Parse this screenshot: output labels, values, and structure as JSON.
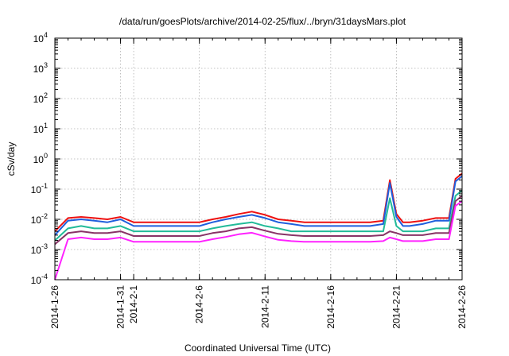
{
  "chart_data": {
    "type": "line",
    "title": "/data/run/goesPlots/archive/2014-02-25/flux/../bryn/31daysMars.plot",
    "xlabel": "Coordinated Universal Time (UTC)",
    "ylabel": "cSv/day",
    "yscale": "log",
    "ylim": [
      0.0001,
      10000
    ],
    "y_ticks": [
      {
        "value": 0.0001,
        "base": "10",
        "exp": "-4"
      },
      {
        "value": 0.001,
        "base": "10",
        "exp": "-3"
      },
      {
        "value": 0.01,
        "base": "10",
        "exp": "-2"
      },
      {
        "value": 0.1,
        "base": "10",
        "exp": "-1"
      },
      {
        "value": 1,
        "base": "10",
        "exp": "0"
      },
      {
        "value": 10,
        "base": "10",
        "exp": "1"
      },
      {
        "value": 100,
        "base": "10",
        "exp": "2"
      },
      {
        "value": 1000,
        "base": "10",
        "exp": "3"
      },
      {
        "value": 10000,
        "base": "10",
        "exp": "4"
      }
    ],
    "xlim": [
      "2014-01-26",
      "2014-02-26"
    ],
    "x_ticks": [
      {
        "date": "2014-01-26",
        "label": "2014-1-26"
      },
      {
        "date": "2014-01-31",
        "label": "2014-1-31"
      },
      {
        "date": "2014-02-01",
        "label": "2014-2-1"
      },
      {
        "date": "2014-02-06",
        "label": "2014-2-6"
      },
      {
        "date": "2014-02-11",
        "label": "2014-2-11"
      },
      {
        "date": "2014-02-16",
        "label": "2014-2-16"
      },
      {
        "date": "2014-02-21",
        "label": "2014-2-21"
      },
      {
        "date": "2014-02-26",
        "label": "2014-2-26"
      }
    ],
    "grid": true,
    "legend": "none",
    "series": [
      {
        "color": "#ee1111",
        "x": [
          "2014-01-26",
          "2014-01-27",
          "2014-01-28",
          "2014-01-29",
          "2014-01-30",
          "2014-01-31",
          "2014-02-01",
          "2014-02-02",
          "2014-02-03",
          "2014-02-04",
          "2014-02-05",
          "2014-02-06",
          "2014-02-07",
          "2014-02-08",
          "2014-02-09",
          "2014-02-10",
          "2014-02-11",
          "2014-02-12",
          "2014-02-13",
          "2014-02-14",
          "2014-02-15",
          "2014-02-16",
          "2014-02-17",
          "2014-02-18",
          "2014-02-19",
          "2014-02-20",
          "2014-02-20T12:00",
          "2014-02-21",
          "2014-02-21T12:00",
          "2014-02-22",
          "2014-02-23",
          "2014-02-24",
          "2014-02-25",
          "2014-02-25T12:00",
          "2014-02-26"
        ],
        "values": [
          0.004,
          0.011,
          0.012,
          0.011,
          0.01,
          0.012,
          0.008,
          0.008,
          0.008,
          0.008,
          0.008,
          0.008,
          0.01,
          0.012,
          0.015,
          0.018,
          0.014,
          0.01,
          0.009,
          0.008,
          0.008,
          0.008,
          0.008,
          0.008,
          0.008,
          0.009,
          0.2,
          0.015,
          0.008,
          0.008,
          0.009,
          0.011,
          0.011,
          0.22,
          0.33
        ]
      },
      {
        "color": "#1f5fdd",
        "x": [
          "2014-01-26",
          "2014-01-27",
          "2014-01-28",
          "2014-01-29",
          "2014-01-30",
          "2014-01-31",
          "2014-02-01",
          "2014-02-02",
          "2014-02-03",
          "2014-02-04",
          "2014-02-05",
          "2014-02-06",
          "2014-02-07",
          "2014-02-08",
          "2014-02-09",
          "2014-02-10",
          "2014-02-11",
          "2014-02-12",
          "2014-02-13",
          "2014-02-14",
          "2014-02-15",
          "2014-02-16",
          "2014-02-17",
          "2014-02-18",
          "2014-02-19",
          "2014-02-20",
          "2014-02-20T12:00",
          "2014-02-21",
          "2014-02-21T12:00",
          "2014-02-22",
          "2014-02-23",
          "2014-02-24",
          "2014-02-25",
          "2014-02-25T12:00",
          "2014-02-26"
        ],
        "values": [
          0.003,
          0.009,
          0.01,
          0.009,
          0.008,
          0.01,
          0.006,
          0.006,
          0.006,
          0.006,
          0.006,
          0.006,
          0.008,
          0.01,
          0.012,
          0.014,
          0.011,
          0.008,
          0.007,
          0.006,
          0.006,
          0.006,
          0.006,
          0.006,
          0.006,
          0.007,
          0.16,
          0.012,
          0.006,
          0.006,
          0.007,
          0.009,
          0.009,
          0.18,
          0.27
        ]
      },
      {
        "color": "#22bb99",
        "x": [
          "2014-01-26",
          "2014-01-27",
          "2014-01-28",
          "2014-01-29",
          "2014-01-30",
          "2014-01-31",
          "2014-02-01",
          "2014-02-02",
          "2014-02-03",
          "2014-02-04",
          "2014-02-05",
          "2014-02-06",
          "2014-02-07",
          "2014-02-08",
          "2014-02-09",
          "2014-02-10",
          "2014-02-11",
          "2014-02-12",
          "2014-02-13",
          "2014-02-14",
          "2014-02-15",
          "2014-02-16",
          "2014-02-17",
          "2014-02-18",
          "2014-02-19",
          "2014-02-20",
          "2014-02-20T12:00",
          "2014-02-21",
          "2014-02-21T12:00",
          "2014-02-22",
          "2014-02-23",
          "2014-02-24",
          "2014-02-25",
          "2014-02-25T12:00",
          "2014-02-26"
        ],
        "values": [
          0.002,
          0.005,
          0.006,
          0.005,
          0.005,
          0.006,
          0.004,
          0.004,
          0.004,
          0.004,
          0.004,
          0.004,
          0.005,
          0.006,
          0.007,
          0.008,
          0.006,
          0.005,
          0.004,
          0.004,
          0.004,
          0.004,
          0.004,
          0.004,
          0.004,
          0.004,
          0.05,
          0.006,
          0.004,
          0.004,
          0.004,
          0.005,
          0.005,
          0.06,
          0.09
        ]
      },
      {
        "color": "#883366",
        "x": [
          "2014-01-26",
          "2014-01-27",
          "2014-01-28",
          "2014-01-29",
          "2014-01-30",
          "2014-01-31",
          "2014-02-01",
          "2014-02-02",
          "2014-02-03",
          "2014-02-04",
          "2014-02-05",
          "2014-02-06",
          "2014-02-07",
          "2014-02-08",
          "2014-02-09",
          "2014-02-10",
          "2014-02-11",
          "2014-02-12",
          "2014-02-13",
          "2014-02-14",
          "2014-02-15",
          "2014-02-16",
          "2014-02-17",
          "2014-02-18",
          "2014-02-19",
          "2014-02-20",
          "2014-02-20T12:00",
          "2014-02-21",
          "2014-02-21T12:00",
          "2014-02-22",
          "2014-02-23",
          "2014-02-24",
          "2014-02-25",
          "2014-02-25T12:00",
          "2014-02-26"
        ],
        "values": [
          0.0015,
          0.0035,
          0.004,
          0.0035,
          0.0035,
          0.004,
          0.0028,
          0.0028,
          0.0028,
          0.0028,
          0.0028,
          0.0028,
          0.0035,
          0.004,
          0.005,
          0.0055,
          0.0042,
          0.0033,
          0.003,
          0.0028,
          0.0028,
          0.0028,
          0.0028,
          0.0028,
          0.0028,
          0.003,
          0.004,
          0.0035,
          0.003,
          0.003,
          0.003,
          0.0035,
          0.0035,
          0.04,
          0.06
        ]
      },
      {
        "color": "#ff22ff",
        "x": [
          "2014-01-26",
          "2014-01-27",
          "2014-01-28",
          "2014-01-29",
          "2014-01-30",
          "2014-01-31",
          "2014-02-01",
          "2014-02-02",
          "2014-02-03",
          "2014-02-04",
          "2014-02-05",
          "2014-02-06",
          "2014-02-07",
          "2014-02-08",
          "2014-02-09",
          "2014-02-10",
          "2014-02-11",
          "2014-02-12",
          "2014-02-13",
          "2014-02-14",
          "2014-02-15",
          "2014-02-16",
          "2014-02-17",
          "2014-02-18",
          "2014-02-19",
          "2014-02-20",
          "2014-02-20T12:00",
          "2014-02-21",
          "2014-02-21T12:00",
          "2014-02-22",
          "2014-02-23",
          "2014-02-24",
          "2014-02-25",
          "2014-02-25T12:00",
          "2014-02-26"
        ],
        "values": [
          0.0001,
          0.0022,
          0.0025,
          0.0022,
          0.0022,
          0.0025,
          0.0018,
          0.0018,
          0.0018,
          0.0018,
          0.0018,
          0.0018,
          0.0022,
          0.0026,
          0.0032,
          0.0036,
          0.0027,
          0.0021,
          0.0019,
          0.0018,
          0.0018,
          0.0018,
          0.0018,
          0.0018,
          0.0018,
          0.0019,
          0.0025,
          0.0022,
          0.0019,
          0.0019,
          0.0019,
          0.0022,
          0.0022,
          0.028,
          0.04
        ]
      }
    ]
  }
}
